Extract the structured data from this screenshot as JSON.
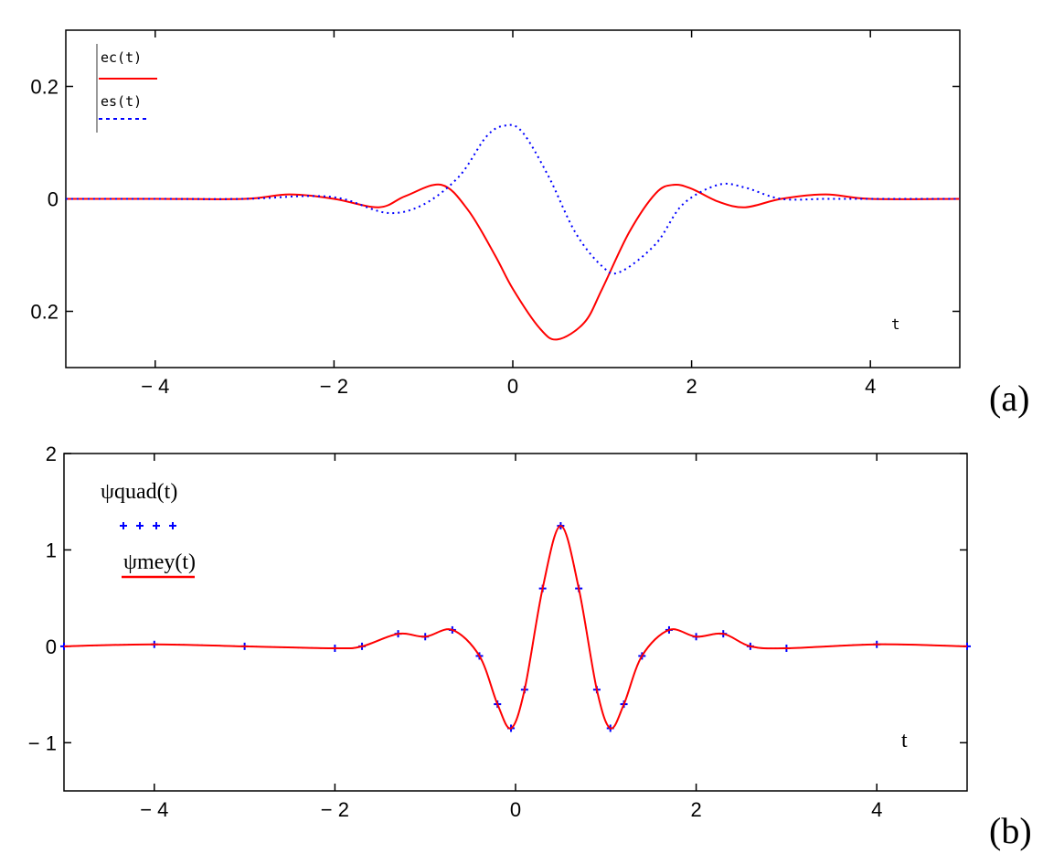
{
  "chart_data": [
    {
      "type": "line",
      "panel_label": "(a)",
      "xlabel": "t",
      "xlim": [
        -5,
        5
      ],
      "ylim": [
        -0.3,
        0.3
      ],
      "x_ticks": [
        -4,
        -2,
        0,
        2,
        4
      ],
      "x_tick_labels": [
        "− 4",
        "− 2",
        "0",
        "2",
        "4"
      ],
      "y_ticks": [
        0.2,
        0,
        -0.2
      ],
      "y_tick_labels": [
        "0.2",
        "0",
        "0.2"
      ],
      "legend_position": "top-left",
      "series": [
        {
          "name": "ec(t)",
          "color": "#ff0000",
          "style": "solid",
          "x": [
            -5,
            -4,
            -3,
            -2.5,
            -2,
            -1.5,
            -1.2,
            -0.8,
            -0.5,
            -0.2,
            0,
            0.3,
            0.5,
            0.8,
            1.0,
            1.3,
            1.6,
            1.8,
            2.0,
            2.3,
            2.6,
            3.0,
            3.5,
            4,
            5
          ],
          "y": [
            0,
            0,
            0,
            0.008,
            0,
            -0.015,
            0.005,
            0.025,
            -0.02,
            -0.1,
            -0.16,
            -0.23,
            -0.25,
            -0.22,
            -0.16,
            -0.06,
            0.01,
            0.025,
            0.018,
            -0.005,
            -0.015,
            0,
            0.008,
            0,
            0
          ]
        },
        {
          "name": "es(t)",
          "color": "#0000ff",
          "style": "dotted",
          "x": [
            -5,
            -4,
            -3,
            -2.3,
            -1.9,
            -1.4,
            -1.0,
            -0.6,
            -0.3,
            -0.1,
            0.1,
            0.4,
            0.7,
            1.0,
            1.2,
            1.6,
            1.9,
            2.3,
            2.6,
            3.0,
            3.5,
            4,
            5
          ],
          "y": [
            0,
            0,
            0,
            0.005,
            0,
            -0.025,
            -0.01,
            0.04,
            0.11,
            0.13,
            0.12,
            0.04,
            -0.06,
            -0.12,
            -0.13,
            -0.08,
            -0.01,
            0.025,
            0.02,
            0,
            0,
            0,
            0
          ]
        }
      ]
    },
    {
      "type": "line",
      "panel_label": "(b)",
      "xlabel": "t",
      "xlim": [
        -5,
        5
      ],
      "ylim": [
        -1.5,
        2
      ],
      "x_ticks": [
        -4,
        -2,
        0,
        2,
        4
      ],
      "x_tick_labels": [
        "− 4",
        "− 2",
        "0",
        "2",
        "4"
      ],
      "y_ticks": [
        2,
        1,
        0,
        -1
      ],
      "y_tick_labels": [
        "2",
        "1",
        "0",
        "− 1"
      ],
      "legend_position": "top-left",
      "series": [
        {
          "name": "ψquad(t)",
          "color": "#0000ff",
          "style": "plus-markers",
          "x": [
            -5,
            -4,
            -3,
            -2,
            -1.7,
            -1.3,
            -1.0,
            -0.7,
            -0.4,
            -0.2,
            -0.05,
            0.1,
            0.3,
            0.5,
            0.7,
            0.9,
            1.05,
            1.2,
            1.4,
            1.7,
            2.0,
            2.3,
            2.6,
            3,
            4,
            5
          ],
          "y": [
            0,
            0.02,
            0,
            -0.02,
            0,
            0.13,
            0.1,
            0.17,
            -0.1,
            -0.6,
            -0.85,
            -0.45,
            0.6,
            1.25,
            0.6,
            -0.45,
            -0.85,
            -0.6,
            -0.1,
            0.17,
            0.1,
            0.13,
            0,
            -0.02,
            0.02,
            0
          ]
        },
        {
          "name": "ψmey(t)",
          "color": "#ff0000",
          "style": "solid",
          "x": [
            -5,
            -4,
            -3,
            -2,
            -1.7,
            -1.3,
            -1.0,
            -0.7,
            -0.4,
            -0.2,
            -0.05,
            0.1,
            0.3,
            0.5,
            0.7,
            0.9,
            1.05,
            1.2,
            1.4,
            1.7,
            2.0,
            2.3,
            2.6,
            3,
            4,
            5
          ],
          "y": [
            0,
            0.02,
            0,
            -0.02,
            0,
            0.13,
            0.1,
            0.17,
            -0.1,
            -0.6,
            -0.85,
            -0.45,
            0.6,
            1.25,
            0.6,
            -0.45,
            -0.85,
            -0.6,
            -0.1,
            0.17,
            0.1,
            0.13,
            0,
            -0.02,
            0.02,
            0
          ]
        }
      ]
    }
  ]
}
